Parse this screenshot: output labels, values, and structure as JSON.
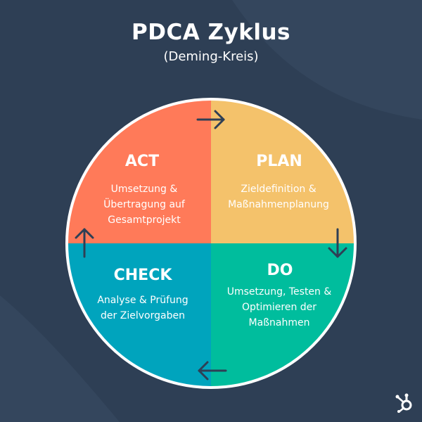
{
  "title": "PDCA Zyklus",
  "subtitle": "(Deming-Kreis)",
  "colors": {
    "background": "#2e3f55",
    "plan": "#f4c26b",
    "do": "#00bd9d",
    "check": "#00a4bd",
    "act": "#ff7a59",
    "arrow": "#2e3f55"
  },
  "quadrants": {
    "act": {
      "title": "ACT",
      "lines": [
        "Umsetzung &",
        "Übertragung auf",
        "Gesamtprojekt"
      ]
    },
    "plan": {
      "title": "PLAN",
      "lines": [
        "Zieldefinition &",
        "Maßnahmenplanung"
      ]
    },
    "check": {
      "title": "CHECK",
      "lines": [
        "Analyse & Prüfung",
        "der Zielvorgaben"
      ]
    },
    "do": {
      "title": "DO",
      "lines": [
        "Umsetzung, Testen &",
        "Optimieren der",
        "Maßnahmen"
      ]
    }
  },
  "icons": {
    "arrow_top": "arrow-right-icon",
    "arrow_right": "arrow-down-icon",
    "arrow_bottom": "arrow-left-icon",
    "arrow_left": "arrow-up-icon",
    "logo": "hubspot-logo-icon"
  }
}
